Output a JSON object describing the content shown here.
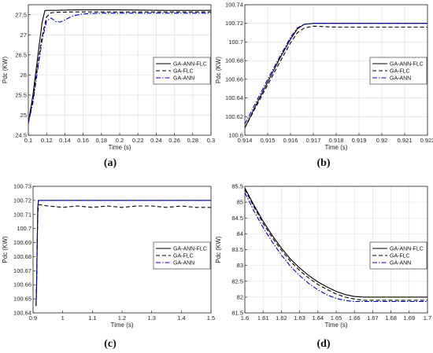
{
  "chart_data": [
    {
      "type": "line",
      "panel_label": "(a)",
      "xlabel": "Time (s)",
      "ylabel": "Pdc (KW)",
      "xlim": [
        0.1,
        0.3
      ],
      "ylim": [
        24.5,
        27.75
      ],
      "xticks": [
        0.1,
        0.12,
        0.14,
        0.16,
        0.18,
        0.2,
        0.22,
        0.24,
        0.26,
        0.28,
        0.3
      ],
      "yticks": [
        24.5,
        25,
        25.5,
        26,
        26.5,
        27,
        27.5
      ],
      "xtick_labels": [
        "0.1",
        "0.12",
        "0.14",
        "0.16",
        "0.18",
        "0.2",
        "0.22",
        "0.24",
        "0.26",
        "0.28",
        "0.3"
      ],
      "ytick_labels": [
        "24.5",
        "25",
        "25.5",
        "26",
        "26.5",
        "27",
        "27.5"
      ],
      "grid": true,
      "legend_position": "right",
      "series": [
        {
          "name": "GA-ANN-FLC",
          "style": "solid",
          "color": "#000000",
          "x": [
            0.1,
            0.105,
            0.11,
            0.115,
            0.118,
            0.12,
            0.13,
            0.15,
            0.2,
            0.25,
            0.3
          ],
          "y": [
            24.8,
            25.5,
            26.4,
            27.3,
            27.6,
            27.61,
            27.61,
            27.62,
            27.62,
            27.61,
            27.61
          ]
        },
        {
          "name": "GA-FLC",
          "style": "dashed",
          "color": "#000000",
          "x": [
            0.1,
            0.105,
            0.11,
            0.115,
            0.12,
            0.125,
            0.13,
            0.15,
            0.2,
            0.25,
            0.3
          ],
          "y": [
            24.8,
            25.4,
            26.2,
            26.95,
            27.45,
            27.55,
            27.56,
            27.57,
            27.57,
            27.57,
            27.57
          ]
        },
        {
          "name": "GA-ANN",
          "style": "dashdot",
          "color": "#0000cc",
          "x": [
            0.1,
            0.105,
            0.11,
            0.115,
            0.12,
            0.125,
            0.13,
            0.135,
            0.14,
            0.145,
            0.15,
            0.16,
            0.18,
            0.2,
            0.25,
            0.3
          ],
          "y": [
            24.8,
            25.3,
            26.1,
            26.85,
            27.35,
            27.42,
            27.33,
            27.32,
            27.37,
            27.43,
            27.48,
            27.52,
            27.54,
            27.54,
            27.54,
            27.54
          ]
        }
      ]
    },
    {
      "type": "line",
      "panel_label": "(b)",
      "xlabel": "Time (s)",
      "ylabel": "Pdc (KW)",
      "xlim": [
        0.914,
        0.922
      ],
      "ylim": [
        100.6,
        100.74
      ],
      "xticks": [
        0.914,
        0.915,
        0.916,
        0.917,
        0.918,
        0.919,
        0.92,
        0.921,
        0.922
      ],
      "yticks": [
        100.6,
        100.62,
        100.64,
        100.66,
        100.68,
        100.7,
        100.72,
        100.74
      ],
      "xtick_labels": [
        "0.914",
        "0.915",
        "0.916",
        "0.917",
        "0.918",
        "0.919",
        "0.92",
        "0.921",
        "0.922"
      ],
      "ytick_labels": [
        "100.6",
        "100.62",
        "100.64",
        "100.66",
        "100.68",
        "100.7",
        "100.72",
        "100.74"
      ],
      "grid": true,
      "legend_position": "right",
      "series": [
        {
          "name": "GA-ANN-FLC",
          "style": "solid",
          "color": "#000000",
          "x": [
            0.914,
            0.9145,
            0.915,
            0.9155,
            0.916,
            0.9163,
            0.9166,
            0.917,
            0.918,
            0.92,
            0.922
          ],
          "y": [
            100.608,
            100.633,
            100.657,
            100.681,
            100.703,
            100.714,
            100.719,
            100.72,
            100.72,
            100.72,
            100.72
          ]
        },
        {
          "name": "GA-FLC",
          "style": "dashed",
          "color": "#000000",
          "x": [
            0.914,
            0.9145,
            0.915,
            0.9155,
            0.916,
            0.9163,
            0.9166,
            0.917,
            0.918,
            0.92,
            0.922
          ],
          "y": [
            100.608,
            100.631,
            100.654,
            100.677,
            100.699,
            100.71,
            100.715,
            100.717,
            100.716,
            100.716,
            100.716
          ]
        },
        {
          "name": "GA-ANN",
          "style": "dashdot",
          "color": "#0000cc",
          "x": [
            0.914,
            0.9145,
            0.915,
            0.9155,
            0.916,
            0.9163,
            0.9166,
            0.917,
            0.918,
            0.92,
            0.922
          ],
          "y": [
            100.612,
            100.636,
            100.66,
            100.683,
            100.705,
            100.715,
            100.719,
            100.72,
            100.72,
            100.72,
            100.72
          ]
        }
      ]
    },
    {
      "type": "line",
      "panel_label": "(c)",
      "xlabel": "Time (s)",
      "ylabel": "Pdc (KW)",
      "xlim": [
        0.9,
        1.5
      ],
      "ylim": [
        100.64,
        100.73
      ],
      "xticks": [
        0.9,
        1.0,
        1.1,
        1.2,
        1.3,
        1.4,
        1.5
      ],
      "yticks": [
        100.64,
        100.65,
        100.66,
        100.67,
        100.68,
        100.69,
        100.7,
        100.71,
        100.72,
        100.73
      ],
      "xtick_labels": [
        "0.9",
        "1",
        "1.1",
        "1.2",
        "1.3",
        "1.4",
        "1.5"
      ],
      "ytick_labels": [
        "100.64",
        "100.65",
        "100.66",
        "100.67",
        "100.68",
        "100.69",
        "100.7",
        "100.71",
        "100.72",
        "100.73"
      ],
      "grid": false,
      "legend_position": "right",
      "series": [
        {
          "name": "GA-ANN-FLC",
          "style": "solid",
          "color": "#000000",
          "x": [
            0.91,
            0.912,
            0.914,
            0.916,
            0.918,
            0.92,
            1.0,
            1.2,
            1.5
          ],
          "y": [
            100.645,
            100.66,
            100.69,
            100.715,
            100.72,
            100.72,
            100.72,
            100.72,
            100.72
          ]
        },
        {
          "name": "GA-FLC",
          "style": "dashed",
          "color": "#000000",
          "x": [
            0.91,
            0.912,
            0.914,
            0.916,
            0.918,
            0.92,
            0.95,
            1.0,
            1.05,
            1.1,
            1.15,
            1.2,
            1.25,
            1.3,
            1.35,
            1.4,
            1.45,
            1.5
          ],
          "y": [
            100.645,
            100.66,
            100.688,
            100.71,
            100.716,
            100.717,
            100.716,
            100.715,
            100.716,
            100.715,
            100.716,
            100.715,
            100.716,
            100.716,
            100.715,
            100.716,
            100.715,
            100.715
          ]
        },
        {
          "name": "GA-ANN",
          "style": "dashdot",
          "color": "#0000cc",
          "x": [
            0.91,
            0.912,
            0.914,
            0.916,
            0.918,
            0.92,
            1.0,
            1.2,
            1.5
          ],
          "y": [
            100.648,
            100.664,
            100.692,
            100.716,
            100.72,
            100.72,
            100.72,
            100.72,
            100.72
          ]
        }
      ]
    },
    {
      "type": "line",
      "panel_label": "(d)",
      "xlabel": "Time (s)",
      "ylabel": "Pdc (KW)",
      "xlim": [
        1.6,
        1.7
      ],
      "ylim": [
        81.5,
        85.5
      ],
      "xticks": [
        1.6,
        1.61,
        1.62,
        1.63,
        1.64,
        1.65,
        1.66,
        1.67,
        1.68,
        1.69,
        1.7
      ],
      "yticks": [
        81.5,
        82,
        82.5,
        83,
        83.5,
        84,
        84.5,
        85,
        85.5
      ],
      "xtick_labels": [
        "1.6",
        "1.61",
        "1.62",
        "1.63",
        "1.64",
        "1.65",
        "1.66",
        "1.67",
        "1.68",
        "1.69",
        "1.7"
      ],
      "ytick_labels": [
        "81.5",
        "82",
        "82.5",
        "83",
        "83.5",
        "84",
        "84.5",
        "85",
        "85.5"
      ],
      "grid": true,
      "legend_position": "top-right",
      "series": [
        {
          "name": "GA-ANN-FLC",
          "style": "solid",
          "color": "#000000",
          "x": [
            1.6,
            1.605,
            1.61,
            1.615,
            1.62,
            1.625,
            1.63,
            1.635,
            1.64,
            1.645,
            1.65,
            1.655,
            1.66,
            1.665,
            1.67,
            1.7
          ],
          "y": [
            85.45,
            84.9,
            84.4,
            83.95,
            83.55,
            83.2,
            82.92,
            82.68,
            82.48,
            82.32,
            82.18,
            82.08,
            82.02,
            82.0,
            82.0,
            82.0
          ]
        },
        {
          "name": "GA-FLC",
          "style": "dashed",
          "color": "#000000",
          "x": [
            1.6,
            1.605,
            1.61,
            1.615,
            1.62,
            1.625,
            1.63,
            1.635,
            1.64,
            1.645,
            1.65,
            1.655,
            1.66,
            1.665,
            1.67,
            1.7
          ],
          "y": [
            85.4,
            84.85,
            84.33,
            83.88,
            83.48,
            83.13,
            82.84,
            82.6,
            82.4,
            82.24,
            82.1,
            82.0,
            81.94,
            81.9,
            81.9,
            81.9
          ]
        },
        {
          "name": "GA-ANN",
          "style": "dashdot",
          "color": "#0000cc",
          "x": [
            1.6,
            1.605,
            1.61,
            1.615,
            1.62,
            1.625,
            1.63,
            1.635,
            1.64,
            1.645,
            1.65,
            1.655,
            1.66,
            1.665,
            1.67,
            1.7
          ],
          "y": [
            85.3,
            84.72,
            84.2,
            83.74,
            83.33,
            82.97,
            82.68,
            82.43,
            82.23,
            82.07,
            81.96,
            81.89,
            81.86,
            81.86,
            81.86,
            81.86
          ]
        }
      ]
    }
  ]
}
